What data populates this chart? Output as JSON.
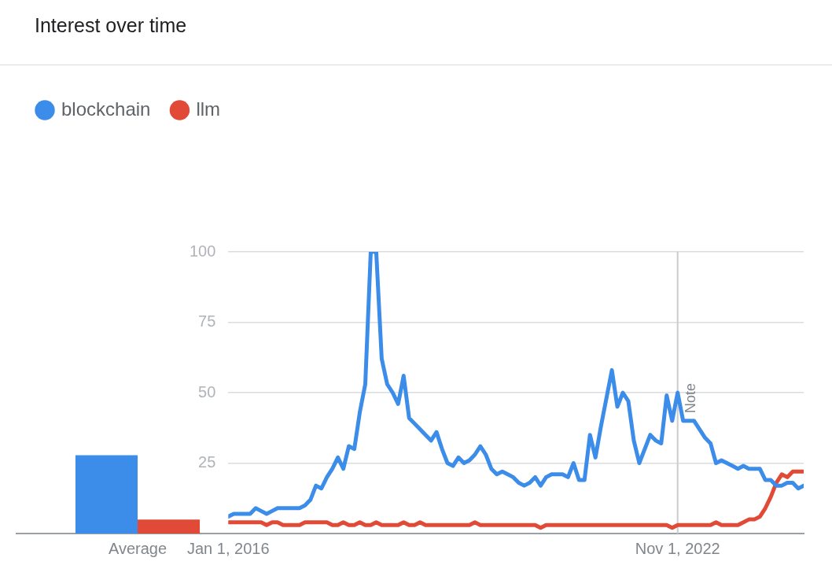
{
  "chart_data": [
    {
      "type": "bar",
      "title": "Interest over time",
      "categories": [
        "Average"
      ],
      "series": [
        {
          "name": "blockchain",
          "color": "#3c8ce9",
          "values": [
            28
          ]
        },
        {
          "name": "llm",
          "color": "#e04a36",
          "values": [
            5
          ]
        }
      ],
      "ylim": [
        0,
        100
      ],
      "tick_labels": "x",
      "legend": "top left",
      "grid": false
    },
    {
      "type": "line",
      "x": [
        "2016-01",
        "2016-02",
        "2016-03",
        "2016-04",
        "2016-05",
        "2016-06",
        "2016-07",
        "2016-08",
        "2016-09",
        "2016-10",
        "2016-11",
        "2016-12",
        "2017-01",
        "2017-02",
        "2017-03",
        "2017-04",
        "2017-05",
        "2017-06",
        "2017-07",
        "2017-08",
        "2017-09",
        "2017-10",
        "2017-11",
        "2017-12",
        "2018-01",
        "2018-02",
        "2018-03",
        "2018-04",
        "2018-05",
        "2018-06",
        "2018-07",
        "2018-08",
        "2018-09",
        "2018-10",
        "2018-11",
        "2018-12",
        "2019-01",
        "2019-02",
        "2019-03",
        "2019-04",
        "2019-05",
        "2019-06",
        "2019-07",
        "2019-08",
        "2019-09",
        "2019-10",
        "2019-11",
        "2019-12",
        "2020-01",
        "2020-02",
        "2020-03",
        "2020-04",
        "2020-05",
        "2020-06",
        "2020-07",
        "2020-08",
        "2020-09",
        "2020-10",
        "2020-11",
        "2020-12",
        "2021-01",
        "2021-02",
        "2021-03",
        "2021-04",
        "2021-05",
        "2021-06",
        "2021-07",
        "2021-08",
        "2021-09",
        "2021-10",
        "2021-11",
        "2021-12",
        "2022-01",
        "2022-02",
        "2022-03",
        "2022-04",
        "2022-05",
        "2022-06",
        "2022-07",
        "2022-08",
        "2022-09",
        "2022-10",
        "2022-11",
        "2022-12",
        "2023-01",
        "2023-02",
        "2023-03",
        "2023-04",
        "2023-05",
        "2023-06",
        "2023-07",
        "2023-08",
        "2023-09",
        "2023-10",
        "2023-11",
        "2023-12",
        "2024-01",
        "2024-02",
        "2024-03",
        "2024-04",
        "2024-05",
        "2024-06",
        "2024-07",
        "2024-08",
        "2024-09",
        "2024-10"
      ],
      "series": [
        {
          "color": "#3c8ce9",
          "values": [
            6,
            7,
            7,
            7,
            7,
            9,
            8,
            7,
            8,
            9,
            9,
            9,
            9,
            9,
            10,
            12,
            17,
            16,
            20,
            23,
            27,
            23,
            31,
            30,
            43,
            53,
            100,
            100,
            62,
            53,
            50,
            46,
            56,
            41,
            39,
            37,
            35,
            33,
            36,
            30,
            25,
            24,
            27,
            25,
            26,
            28,
            31,
            28,
            23,
            21,
            22,
            21,
            20,
            18,
            17,
            18,
            20,
            17,
            20,
            21,
            21,
            21,
            20,
            25,
            19,
            19,
            35,
            27,
            38,
            48,
            58,
            45,
            50,
            47,
            33,
            25,
            30,
            35,
            33,
            32,
            49,
            40,
            50,
            40,
            40,
            40,
            37,
            34,
            32,
            25,
            26,
            25,
            24,
            23,
            24,
            23,
            23,
            23,
            19,
            19,
            17,
            17,
            18,
            18,
            16,
            17
          ]
        },
        {
          "color": "#e04a36",
          "values": [
            4,
            4,
            4,
            4,
            4,
            4,
            4,
            3,
            4,
            4,
            3,
            3,
            3,
            3,
            4,
            4,
            4,
            4,
            4,
            3,
            3,
            4,
            3,
            3,
            4,
            3,
            3,
            4,
            3,
            3,
            3,
            3,
            4,
            3,
            3,
            4,
            3,
            3,
            3,
            3,
            3,
            3,
            3,
            3,
            3,
            4,
            3,
            3,
            3,
            3,
            3,
            3,
            3,
            3,
            3,
            3,
            3,
            2,
            3,
            3,
            3,
            3,
            3,
            3,
            3,
            3,
            3,
            3,
            3,
            3,
            3,
            3,
            3,
            3,
            3,
            3,
            3,
            3,
            3,
            3,
            3,
            2,
            3,
            3,
            3,
            3,
            3,
            3,
            3,
            4,
            3,
            3,
            3,
            3,
            4,
            5,
            5,
            6,
            9,
            13,
            18,
            21,
            20,
            22,
            22,
            22
          ]
        }
      ],
      "xlim": [
        "2016-01",
        "2024-10"
      ],
      "xticks": [
        {
          "value": "2016-01",
          "label": "Jan 1, 2016"
        },
        {
          "value": "2022-11",
          "label": "Nov 1, 2022"
        }
      ],
      "ylim": [
        0,
        100
      ],
      "yticks": [
        25,
        50,
        75,
        100
      ],
      "grid": "y",
      "legend": false,
      "marker": "none",
      "line_style": "solid",
      "ref_lines": [
        {
          "axis": "x",
          "value": "2022-11",
          "label": "Note",
          "color": "#cccccc"
        }
      ]
    }
  ]
}
